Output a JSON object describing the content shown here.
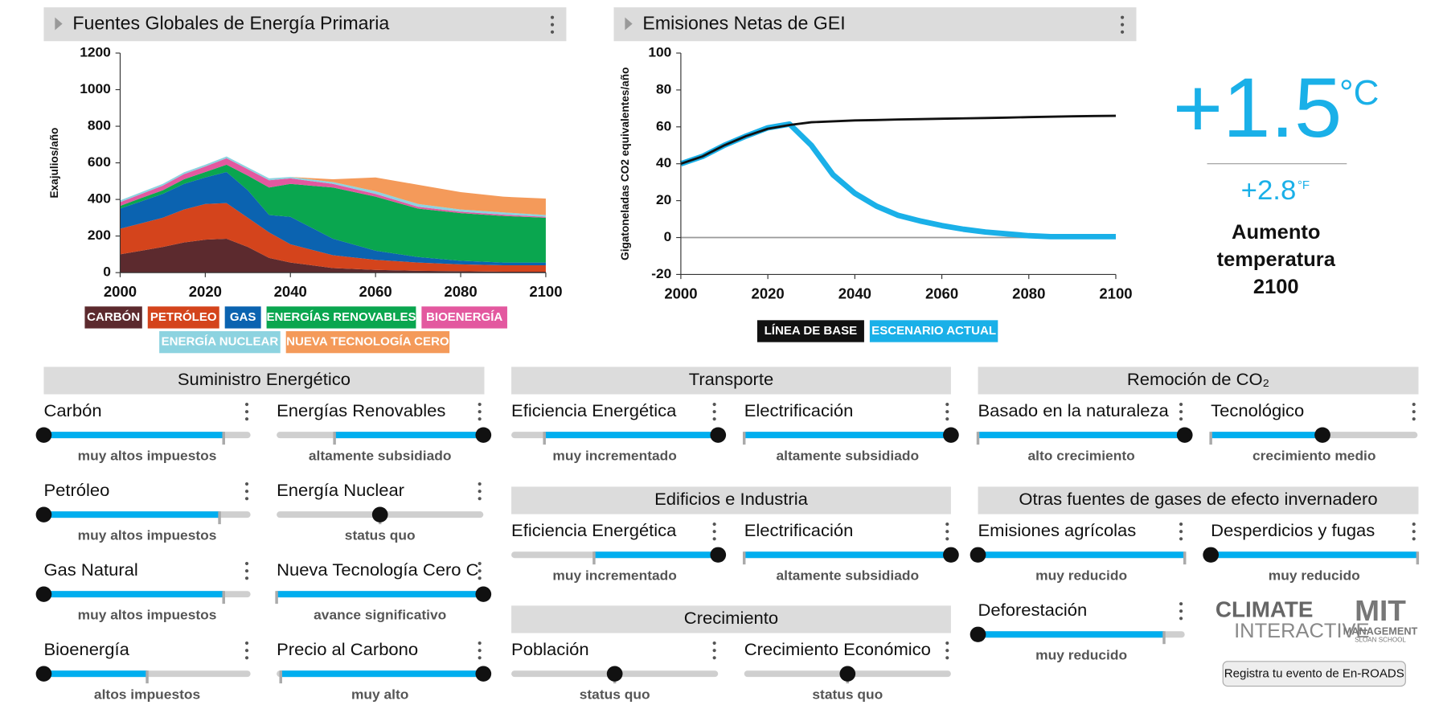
{
  "chart_data": [
    {
      "type": "area",
      "title": "Fuentes Globales de Energía Primaria",
      "y_label": "Exajulios/año",
      "x": [
        2000,
        2005,
        2010,
        2015,
        2020,
        2025,
        2030,
        2035,
        2040,
        2050,
        2060,
        2070,
        2080,
        2090,
        2100
      ],
      "xlim": [
        2000,
        2100
      ],
      "xticks": [
        2000,
        2020,
        2040,
        2060,
        2080,
        2100
      ],
      "ylim": [
        0,
        1200
      ],
      "yticks": [
        0,
        200,
        400,
        600,
        800,
        1000,
        1200
      ],
      "stacked": true,
      "series": [
        {
          "name": "CARBÓN",
          "color": "#5c2a2e",
          "values": [
            100,
            120,
            140,
            165,
            180,
            185,
            140,
            80,
            55,
            25,
            15,
            10,
            8,
            5,
            5
          ]
        },
        {
          "name": "PETRÓLEO",
          "color": "#d4441c",
          "values": [
            140,
            150,
            160,
            180,
            195,
            195,
            160,
            140,
            100,
            70,
            55,
            45,
            37,
            35,
            35
          ]
        },
        {
          "name": "GAS",
          "color": "#0b63b0",
          "values": [
            110,
            120,
            130,
            140,
            145,
            170,
            150,
            95,
            150,
            90,
            50,
            30,
            20,
            15,
            15
          ]
        },
        {
          "name": "ENERGÍAS RENOVABLES",
          "color": "#0aa64f",
          "values": [
            15,
            18,
            20,
            25,
            30,
            40,
            80,
            150,
            180,
            280,
            295,
            265,
            260,
            255,
            245
          ]
        },
        {
          "name": "BIOENERGÍA",
          "color": "#e3589f",
          "values": [
            20,
            22,
            25,
            28,
            30,
            35,
            35,
            40,
            30,
            20,
            15,
            10,
            8,
            7,
            5
          ]
        },
        {
          "name": "ENERGÍA NUCLEAR",
          "color": "#8dd3e0",
          "values": [
            10,
            10,
            10,
            10,
            10,
            10,
            10,
            10,
            8,
            10,
            15,
            15,
            12,
            12,
            10
          ]
        },
        {
          "name": "NUEVA TECNOLOGÍA CERO",
          "color": "#f49a5a",
          "values": [
            0,
            0,
            0,
            0,
            0,
            0,
            0,
            0,
            0,
            15,
            75,
            105,
            95,
            86,
            90
          ]
        }
      ]
    },
    {
      "type": "line",
      "title": "Emisiones Netas de GEI",
      "y_label": "Gigatoneladas CO2 equivalentes/año",
      "x": [
        2000,
        2005,
        2010,
        2015,
        2020,
        2025,
        2030,
        2035,
        2040,
        2045,
        2050,
        2055,
        2060,
        2065,
        2070,
        2075,
        2080,
        2085,
        2090,
        2095,
        2100
      ],
      "xlim": [
        2000,
        2100
      ],
      "xticks": [
        2000,
        2020,
        2040,
        2060,
        2080,
        2100
      ],
      "ylim": [
        -20,
        100
      ],
      "yticks": [
        -20,
        0,
        20,
        40,
        60,
        80,
        100
      ],
      "series": [
        {
          "name": "ESCENARIO ACTUAL",
          "color": "#1ab0e8",
          "values": [
            40,
            44,
            50,
            55,
            59.5,
            61.5,
            50,
            34,
            24,
            17,
            12,
            9,
            6.5,
            4.5,
            3,
            2,
            1,
            0.5,
            0.5,
            0.5,
            0.5
          ]
        },
        {
          "name": "LÍNEA DE BASE",
          "color": "#111111",
          "values": [
            40,
            44,
            50,
            55,
            59,
            61,
            62.5,
            63,
            63.5,
            63.7,
            64,
            64.2,
            64.4,
            64.6,
            64.8,
            65,
            65.3,
            65.5,
            65.7,
            65.9,
            66
          ]
        }
      ]
    }
  ],
  "temperature": {
    "celsius": "+1.5",
    "celsius_unit": "°C",
    "fahrenheit": "+2.8",
    "fahrenheit_unit": "°F",
    "label": [
      "Aumento",
      "temperatura",
      "2100"
    ]
  },
  "panels": [
    {
      "title": "Suministro Energético",
      "sliders": [
        {
          "label": "Carbón",
          "setting": "muy altos impuestos",
          "knob": 0,
          "default": 0.87
        },
        {
          "label": "Energías Renovables",
          "setting": "altamente subsidiado",
          "knob": 1,
          "default": 0.28
        },
        {
          "label": "Petróleo",
          "setting": "muy altos impuestos",
          "knob": 0,
          "default": 0.85
        },
        {
          "label": "Energía Nuclear",
          "setting": "status quo",
          "knob": 0.5,
          "default": 0.5
        },
        {
          "label": "Gas Natural",
          "setting": "muy altos impuestos",
          "knob": 0,
          "default": 0.87
        },
        {
          "label": "Nueva Tecnología Cero C",
          "setting": "avance significativo",
          "knob": 1,
          "default": 0
        },
        {
          "label": "Bioenergía",
          "setting": "altos impuestos",
          "knob": 0,
          "default": 0.5
        },
        {
          "label": "Precio al Carbono",
          "setting": "muy alto",
          "knob": 1,
          "default": 0.02
        }
      ]
    },
    {
      "title": "Transporte",
      "sliders": [
        {
          "label": "Eficiencia Energética",
          "setting": "muy incrementado",
          "knob": 1,
          "default": 0.16
        },
        {
          "label": "Electrificación",
          "setting": "altamente subsidiado",
          "knob": 1,
          "default": 0
        }
      ]
    },
    {
      "title": "Edificios e Industria",
      "sliders": [
        {
          "label": "Eficiencia Energética",
          "setting": "muy incrementado",
          "knob": 1,
          "default": 0.4
        },
        {
          "label": "Electrificación",
          "setting": "altamente subsidiado",
          "knob": 1,
          "default": 0
        }
      ]
    },
    {
      "title": "Crecimiento",
      "sliders": [
        {
          "label": "Población",
          "setting": "status quo",
          "knob": 0.5,
          "default": 0.5
        },
        {
          "label": "Crecimiento Económico",
          "setting": "status quo",
          "knob": 0.5,
          "default": 0.5
        }
      ]
    },
    {
      "title": "Remoción de CO₂",
      "sliders": [
        {
          "label": "Basado en la naturaleza",
          "setting": "alto crecimiento",
          "knob": 1,
          "default": 0
        },
        {
          "label": "Tecnológico",
          "setting": "crecimiento medio",
          "knob": 0.54,
          "default": 0
        }
      ]
    },
    {
      "title": "Otras fuentes de gases de efecto invernadero",
      "sliders": [
        {
          "label": "Emisiones agrícolas",
          "setting": "muy reducido",
          "knob": 0,
          "default": 1
        },
        {
          "label": "Desperdicios y fugas",
          "setting": "muy reducido",
          "knob": 0,
          "default": 1
        },
        {
          "label": "Deforestación",
          "setting": "muy reducido",
          "knob": 0,
          "default": 0.9
        }
      ]
    }
  ],
  "footer": {
    "climate_logo": [
      "CLIMATE",
      "INTERACTIVE"
    ],
    "mit_logo": [
      "MIT",
      "MANAGEMENT",
      "SLOAN SCHOOL"
    ],
    "button": "Registra tu evento de En-ROADS"
  }
}
